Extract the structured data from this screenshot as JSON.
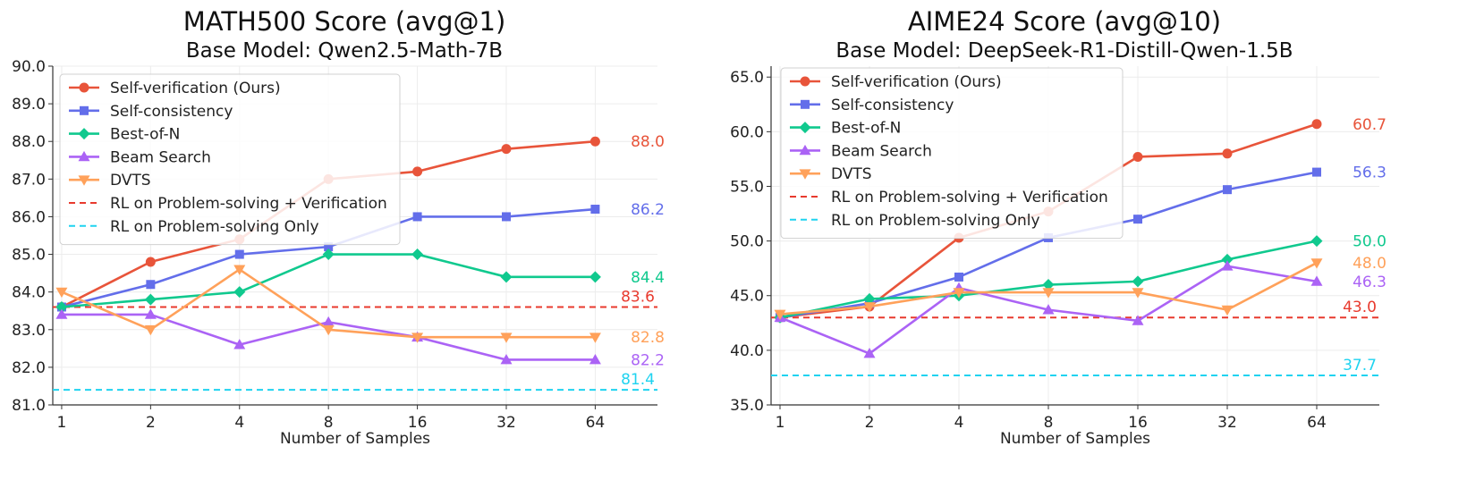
{
  "chart_data": [
    {
      "type": "line",
      "title": "MATH500 Score (avg@1)",
      "subtitle": "Base Model: Qwen2.5-Math-7B",
      "xlabel": "Number of Samples",
      "ylabel": "",
      "categories": [
        "1",
        "2",
        "4",
        "8",
        "16",
        "32",
        "64"
      ],
      "ylim": [
        81.0,
        90.0
      ],
      "yticks": [
        "81.0",
        "82.0",
        "83.0",
        "84.0",
        "85.0",
        "86.0",
        "87.0",
        "88.0",
        "89.0",
        "90.0"
      ],
      "grid": true,
      "legend_position": "top-left",
      "series": [
        {
          "name": "Self-verification (Ours)",
          "color": "#E8543A",
          "marker": "circle",
          "values": [
            83.6,
            84.8,
            85.4,
            87.0,
            87.2,
            87.8,
            88.0
          ],
          "end_label": "88.0"
        },
        {
          "name": "Self-consistency",
          "color": "#636EEA",
          "marker": "square",
          "values": [
            83.6,
            84.2,
            85.0,
            85.2,
            86.0,
            86.0,
            86.2
          ],
          "end_label": "86.2"
        },
        {
          "name": "Best-of-N",
          "color": "#10C98E",
          "marker": "diamond",
          "values": [
            83.6,
            83.8,
            84.0,
            85.0,
            85.0,
            84.4,
            84.4
          ],
          "end_label": "84.4"
        },
        {
          "name": "Beam Search",
          "color": "#AB63F5",
          "marker": "triangle-up",
          "values": [
            83.4,
            83.4,
            82.6,
            83.2,
            82.8,
            82.2,
            82.2
          ],
          "end_label": "82.2"
        },
        {
          "name": "DVTS",
          "color": "#FFA15A",
          "marker": "triangle-down",
          "values": [
            84.0,
            83.0,
            84.6,
            83.0,
            82.8,
            82.8,
            82.8
          ],
          "end_label": "82.8"
        }
      ],
      "reference_lines": [
        {
          "name": "RL on Problem-solving + Verification",
          "color": "#E83A2E",
          "value": 83.6,
          "label": "83.6"
        },
        {
          "name": "RL on Problem-solving Only",
          "color": "#1FD3F0",
          "value": 81.4,
          "label": "81.4"
        }
      ]
    },
    {
      "type": "line",
      "title": "AIME24 Score (avg@10)",
      "subtitle": "Base Model: DeepSeek-R1-Distill-Qwen-1.5B",
      "xlabel": "Number of Samples",
      "ylabel": "",
      "categories": [
        "1",
        "2",
        "4",
        "8",
        "16",
        "32",
        "64"
      ],
      "ylim": [
        35.0,
        66.0
      ],
      "yticks": [
        "35.0",
        "40.0",
        "45.0",
        "50.0",
        "55.0",
        "60.0",
        "65.0"
      ],
      "grid": true,
      "legend_position": "top-left",
      "series": [
        {
          "name": "Self-verification (Ours)",
          "color": "#E8543A",
          "marker": "circle",
          "values": [
            43.0,
            44.0,
            50.3,
            52.7,
            57.7,
            58.0,
            60.7
          ],
          "end_label": "60.7"
        },
        {
          "name": "Self-consistency",
          "color": "#636EEA",
          "marker": "square",
          "values": [
            43.0,
            44.3,
            46.7,
            50.3,
            52.0,
            54.7,
            56.3
          ],
          "end_label": "56.3"
        },
        {
          "name": "Best-of-N",
          "color": "#10C98E",
          "marker": "diamond",
          "values": [
            43.0,
            44.7,
            45.0,
            46.0,
            46.3,
            48.3,
            50.0
          ],
          "end_label": "50.0"
        },
        {
          "name": "Beam Search",
          "color": "#AB63F5",
          "marker": "triangle-up",
          "values": [
            43.0,
            39.7,
            45.7,
            43.7,
            42.7,
            47.7,
            46.3
          ],
          "end_label": "46.3"
        },
        {
          "name": "DVTS",
          "color": "#FFA15A",
          "marker": "triangle-down",
          "values": [
            43.3,
            44.0,
            45.3,
            45.3,
            45.3,
            43.7,
            48.0
          ],
          "end_label": "48.0"
        }
      ],
      "reference_lines": [
        {
          "name": "RL on Problem-solving + Verification",
          "color": "#E83A2E",
          "value": 43.0,
          "label": "43.0"
        },
        {
          "name": "RL on Problem-solving Only",
          "color": "#1FD3F0",
          "value": 37.7,
          "label": "37.7"
        }
      ]
    }
  ]
}
